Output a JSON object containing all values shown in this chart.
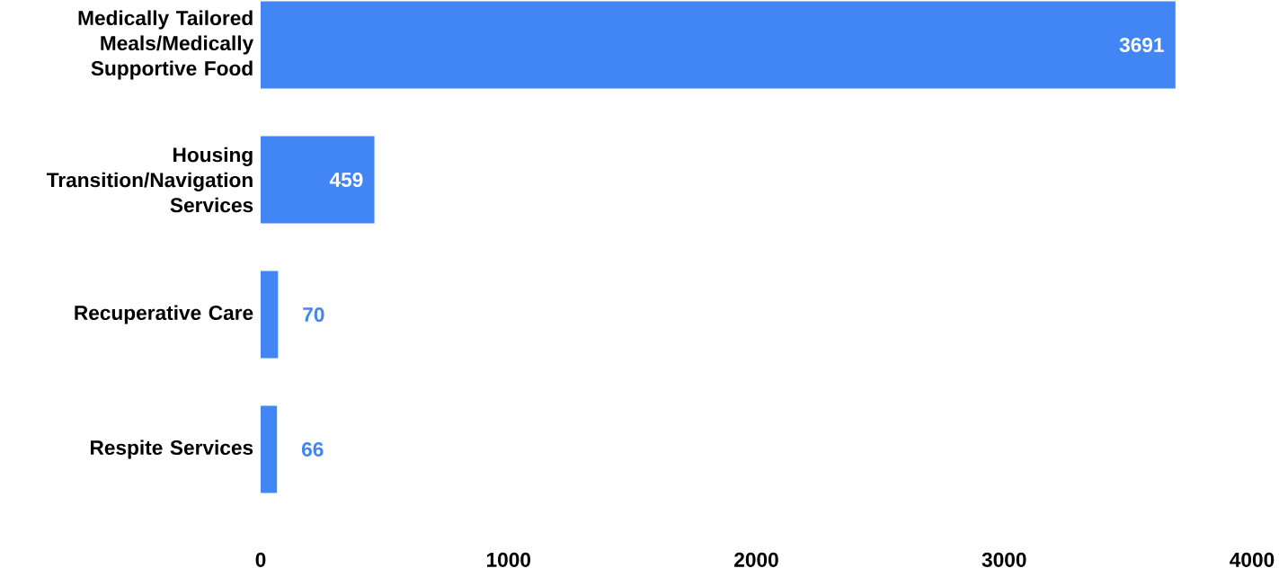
{
  "chart_data": {
    "type": "bar",
    "orientation": "horizontal",
    "categories": [
      "Medically Tailored Meals/Medically Supportive Food",
      "Housing Transition/Navigation Services",
      "Recuperative Care",
      "Respite Services"
    ],
    "values": [
      3691,
      459,
      70,
      66
    ],
    "color": "#4285f4",
    "xlim": [
      0,
      4000
    ],
    "xticks": [
      0,
      1000,
      2000,
      3000,
      4000
    ],
    "data_labels": true,
    "grid": false
  }
}
